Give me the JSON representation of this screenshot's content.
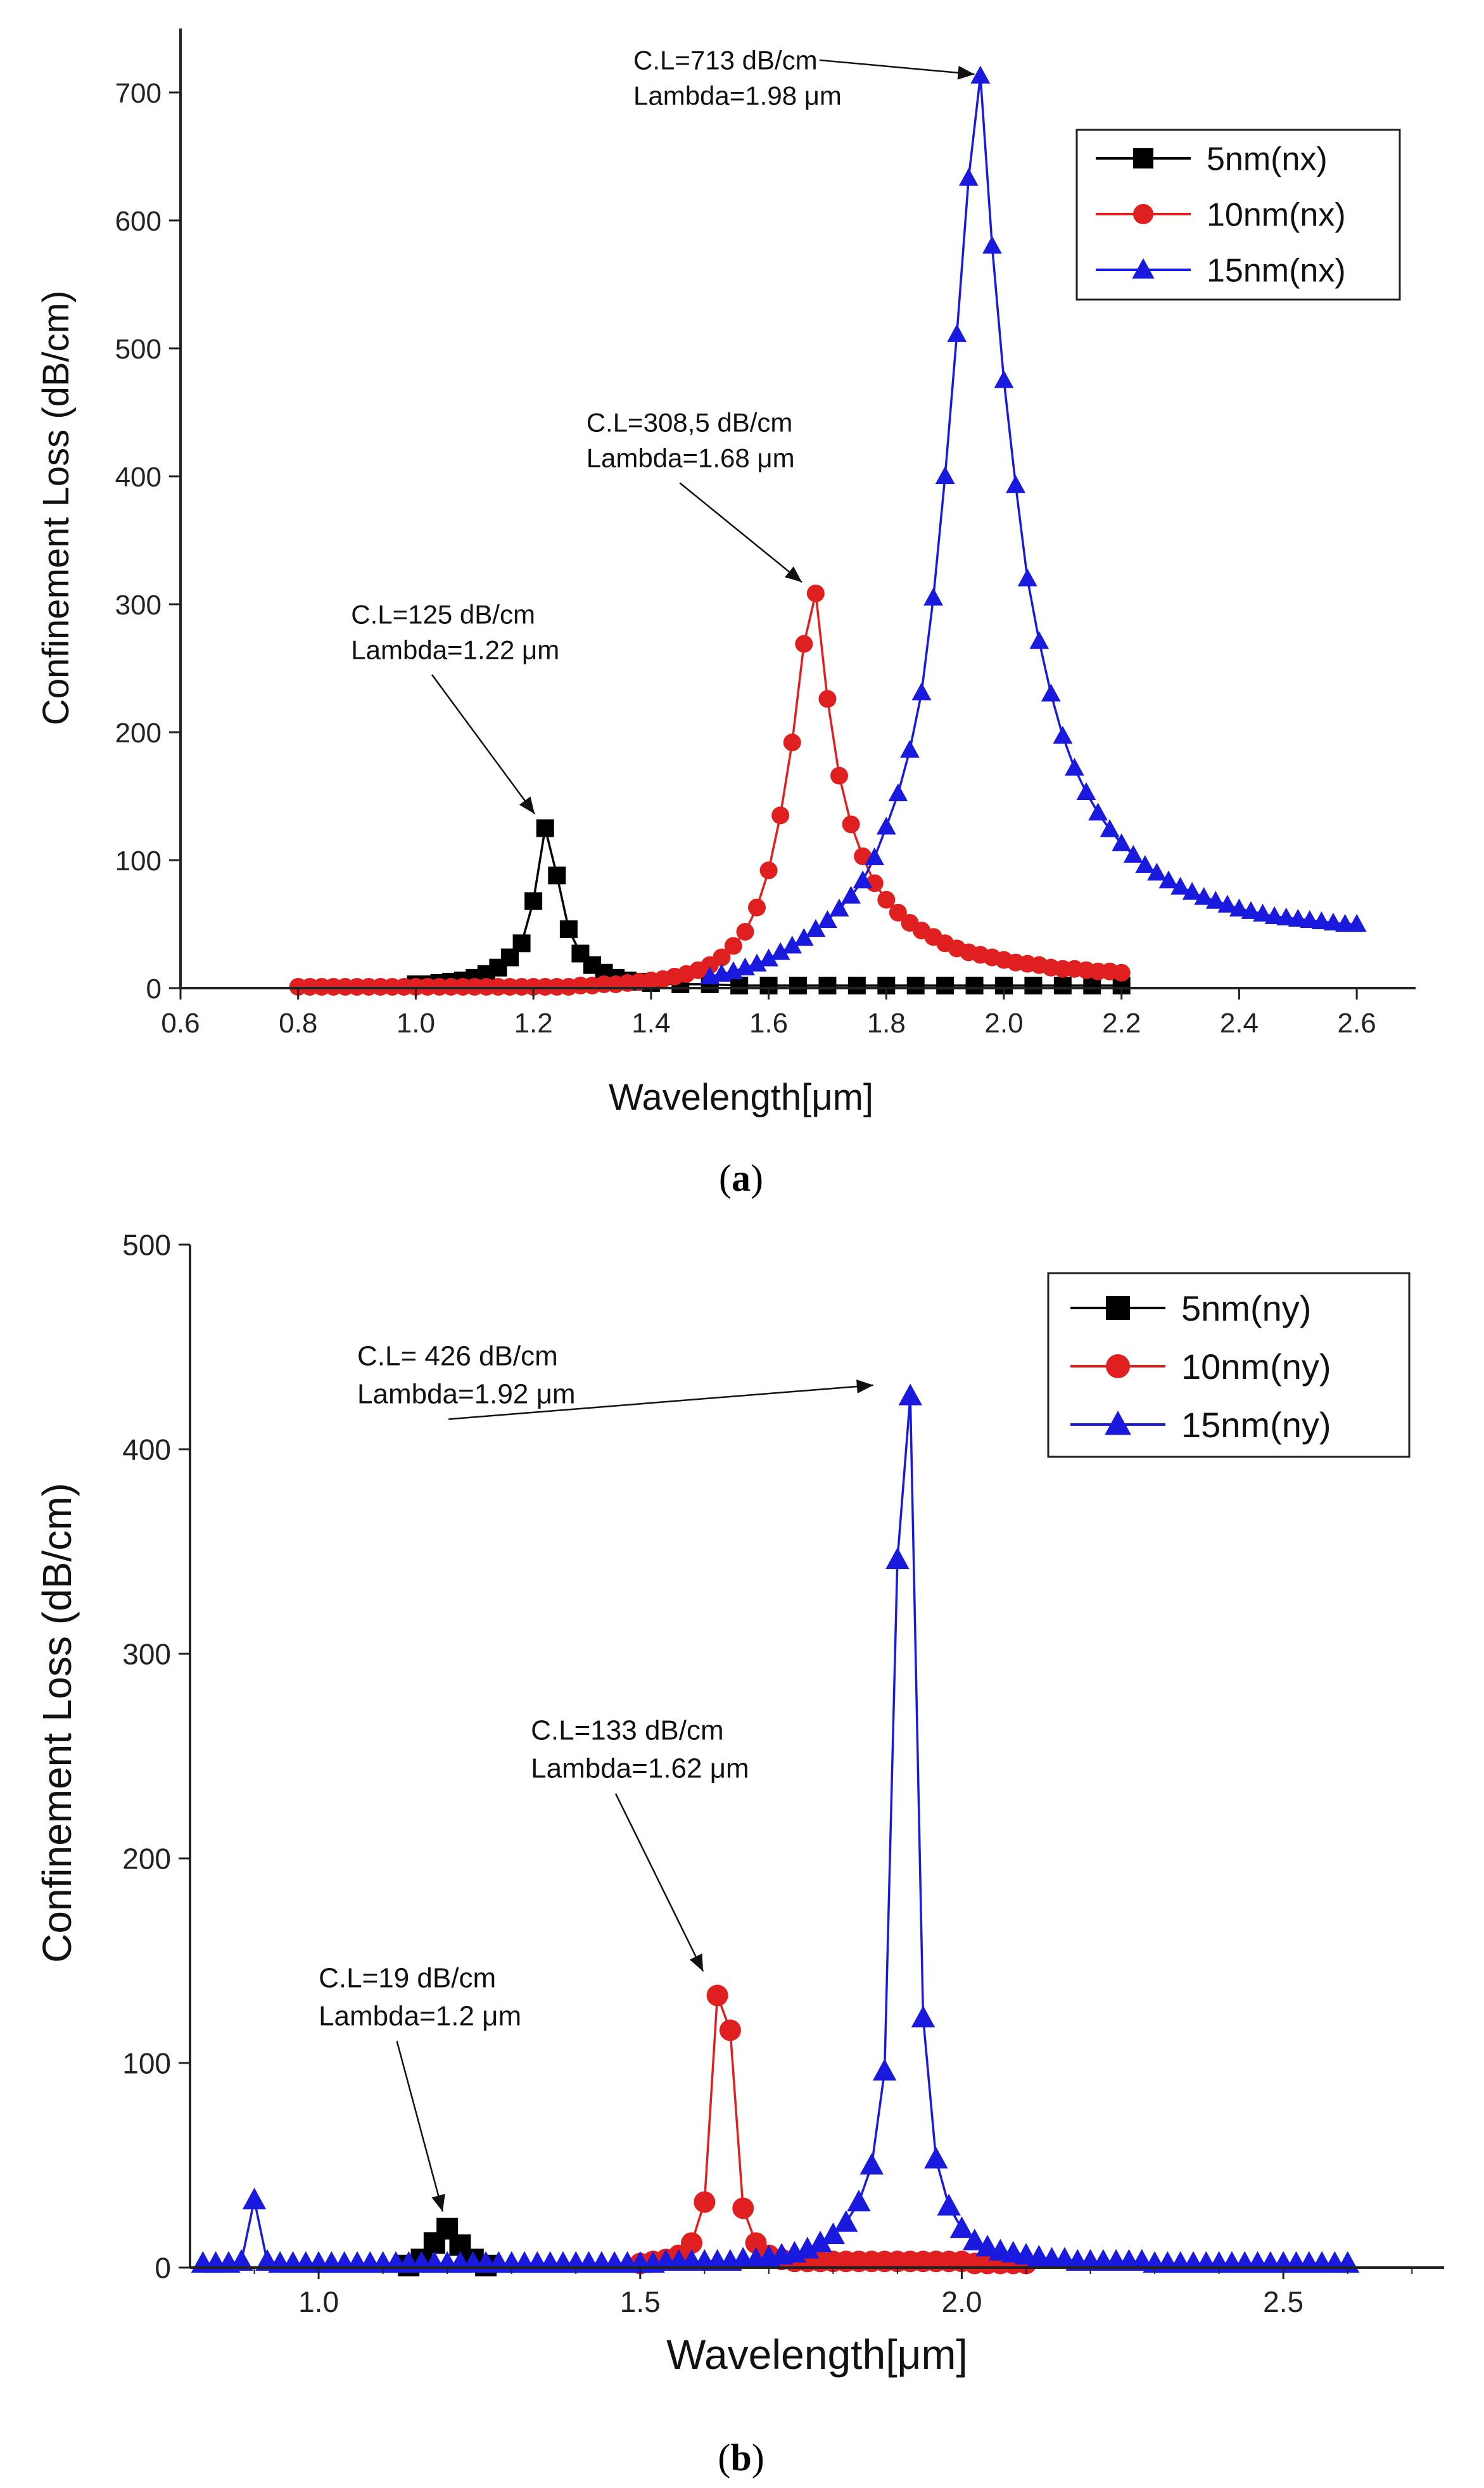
{
  "chart_data": [
    {
      "type": "line",
      "panel_label": "a",
      "title": "",
      "xlabel": "Wavelength[μm]",
      "ylabel": "Confinement Loss (dB/cm)",
      "xlim": [
        0.6,
        2.7
      ],
      "ylim": [
        0,
        750
      ],
      "xticks": [
        "0.6",
        "0.8",
        "1.0",
        "1.2",
        "1.4",
        "1.6",
        "1.8",
        "2.0",
        "2.2",
        "2.4",
        "2.6"
      ],
      "yticks": [
        "0",
        "100",
        "200",
        "300",
        "400",
        "500",
        "600",
        "700"
      ],
      "legend_position": "top-right",
      "series": [
        {
          "name": "5nm(nx)",
          "color": "#000000",
          "marker": "square",
          "x": [
            1.0,
            1.02,
            1.04,
            1.06,
            1.08,
            1.1,
            1.12,
            1.14,
            1.16,
            1.18,
            1.2,
            1.22,
            1.24,
            1.26,
            1.28,
            1.3,
            1.32,
            1.34,
            1.36,
            1.38,
            1.4,
            1.45,
            1.5,
            1.55,
            1.6,
            1.65,
            1.7,
            1.75,
            1.8,
            1.85,
            1.9,
            1.95,
            2.0,
            2.05,
            2.1,
            2.15,
            2.2
          ],
          "values": [
            3,
            3,
            4,
            5,
            6,
            8,
            11,
            16,
            24,
            35,
            68,
            125,
            88,
            46,
            27,
            18,
            12,
            8,
            6,
            5,
            4,
            3,
            3,
            2,
            2,
            2,
            2,
            2,
            2,
            2,
            2,
            2,
            2,
            2,
            2,
            2,
            2
          ]
        },
        {
          "name": "10nm(nx)",
          "color": "#e02020",
          "marker": "circle",
          "x": [
            0.8,
            0.82,
            0.84,
            0.86,
            0.88,
            0.9,
            0.92,
            0.94,
            0.96,
            0.98,
            1.0,
            1.02,
            1.04,
            1.06,
            1.08,
            1.1,
            1.12,
            1.14,
            1.16,
            1.18,
            1.2,
            1.22,
            1.24,
            1.26,
            1.28,
            1.3,
            1.32,
            1.34,
            1.36,
            1.38,
            1.4,
            1.42,
            1.44,
            1.46,
            1.48,
            1.5,
            1.52,
            1.54,
            1.56,
            1.58,
            1.6,
            1.62,
            1.64,
            1.66,
            1.68,
            1.7,
            1.72,
            1.74,
            1.76,
            1.78,
            1.8,
            1.82,
            1.84,
            1.86,
            1.88,
            1.9,
            1.92,
            1.94,
            1.96,
            1.98,
            2.0,
            2.02,
            2.04,
            2.06,
            2.08,
            2.1,
            2.12,
            2.14,
            2.16,
            2.18,
            2.2
          ],
          "values": [
            1,
            1,
            1,
            1,
            1,
            1,
            1,
            1,
            1,
            1,
            1,
            1,
            1,
            1,
            1,
            1,
            1,
            1,
            1,
            1,
            1,
            1,
            1,
            1,
            2,
            2,
            3,
            3,
            4,
            5,
            6,
            7,
            9,
            11,
            14,
            18,
            24,
            33,
            44,
            63,
            92,
            135,
            192,
            269,
            308.5,
            226,
            166,
            128,
            103,
            82,
            69,
            59,
            51,
            45,
            40,
            35,
            31,
            28,
            26,
            24,
            22,
            20,
            19,
            18,
            16,
            15,
            15,
            14,
            13,
            13,
            12
          ]
        },
        {
          "name": "15nm(nx)",
          "color": "#1a1adf",
          "marker": "triangle",
          "x": [
            1.5,
            1.52,
            1.54,
            1.56,
            1.58,
            1.6,
            1.62,
            1.64,
            1.66,
            1.68,
            1.7,
            1.72,
            1.74,
            1.76,
            1.78,
            1.8,
            1.82,
            1.84,
            1.86,
            1.88,
            1.9,
            1.92,
            1.94,
            1.96,
            1.98,
            2.0,
            2.02,
            2.04,
            2.06,
            2.08,
            2.1,
            2.12,
            2.14,
            2.16,
            2.18,
            2.2,
            2.22,
            2.24,
            2.26,
            2.28,
            2.3,
            2.32,
            2.34,
            2.36,
            2.38,
            2.4,
            2.42,
            2.44,
            2.46,
            2.48,
            2.5,
            2.52,
            2.54,
            2.56,
            2.58,
            2.6
          ],
          "values": [
            9,
            11,
            13,
            16,
            19,
            23,
            28,
            33,
            39,
            46,
            53,
            62,
            72,
            84,
            102,
            126,
            152,
            186,
            231,
            305,
            400,
            511,
            633,
            713,
            580,
            475,
            393,
            320,
            271,
            230,
            197,
            172,
            153,
            137,
            124,
            113,
            104,
            96,
            90,
            84,
            79,
            75,
            71,
            68,
            65,
            62,
            60,
            58,
            56,
            55,
            54,
            53,
            52,
            51,
            50,
            50
          ]
        }
      ],
      "annotations": [
        {
          "line1": "C.L=125 dB/cm",
          "line2": "Lambda=1.22 μm",
          "x": 1.22,
          "y": 125,
          "text_x": 0.89,
          "text_y": 285
        },
        {
          "line1": "C.L=308,5 dB/cm",
          "line2": "Lambda=1.68 μm",
          "x": 1.68,
          "y": 308.5,
          "text_x": 1.29,
          "text_y": 435
        },
        {
          "line1": "C.L=713 dB/cm",
          "line2": "Lambda=1.98 μm",
          "x": 1.98,
          "y": 713,
          "text_x": 1.37,
          "text_y": 718
        }
      ]
    },
    {
      "type": "line",
      "panel_label": "b",
      "title": "",
      "xlabel": "Wavelength[μm]",
      "ylabel": "Confinement Loss (dB/cm)",
      "xlim": [
        0.8,
        2.75
      ],
      "ylim": [
        0,
        500
      ],
      "xticks": [
        "1.0",
        "1.5",
        "2.0",
        "2.5"
      ],
      "xtick_values": [
        1.0,
        1.5,
        2.0,
        2.5
      ],
      "yticks": [
        "0",
        "100",
        "200",
        "300",
        "400",
        "500"
      ],
      "legend_position": "top-right",
      "series": [
        {
          "name": "5nm(ny)",
          "color": "#000000",
          "marker": "square",
          "x": [
            1.14,
            1.16,
            1.18,
            1.2,
            1.22,
            1.24,
            1.26
          ],
          "values": [
            1,
            4,
            12,
            19,
            11,
            4,
            1
          ]
        },
        {
          "name": "10nm(ny)",
          "color": "#e02020",
          "marker": "circle",
          "x": [
            1.5,
            1.52,
            1.54,
            1.56,
            1.58,
            1.6,
            1.62,
            1.64,
            1.66,
            1.68,
            1.7,
            1.72,
            1.74,
            1.76,
            1.78,
            1.8,
            1.82,
            1.84,
            1.86,
            1.88,
            1.9,
            1.92,
            1.94,
            1.96,
            1.98,
            2.0,
            2.02,
            2.04,
            2.06,
            2.08,
            2.1
          ],
          "values": [
            2,
            3,
            4,
            6,
            12,
            32,
            133,
            116,
            29,
            12,
            6,
            4,
            3,
            3,
            3,
            3,
            3,
            3,
            3,
            3,
            3,
            3,
            3,
            3,
            3,
            3,
            2,
            2,
            2,
            2,
            2
          ]
        },
        {
          "name": "15nm(ny)",
          "color": "#1a1adf",
          "marker": "triangle",
          "x": [
            0.82,
            0.84,
            0.86,
            0.88,
            0.9,
            0.92,
            0.94,
            0.96,
            0.98,
            1.0,
            1.02,
            1.04,
            1.06,
            1.08,
            1.1,
            1.12,
            1.14,
            1.16,
            1.18,
            1.2,
            1.22,
            1.24,
            1.26,
            1.28,
            1.3,
            1.32,
            1.34,
            1.36,
            1.38,
            1.4,
            1.42,
            1.44,
            1.46,
            1.48,
            1.5,
            1.52,
            1.54,
            1.56,
            1.58,
            1.6,
            1.62,
            1.64,
            1.66,
            1.68,
            1.7,
            1.72,
            1.74,
            1.76,
            1.78,
            1.8,
            1.82,
            1.84,
            1.86,
            1.88,
            1.9,
            1.92,
            1.94,
            1.96,
            1.98,
            2.0,
            2.02,
            2.04,
            2.06,
            2.08,
            2.1,
            2.12,
            2.14,
            2.16,
            2.18,
            2.2,
            2.22,
            2.24,
            2.26,
            2.28,
            2.3,
            2.32,
            2.34,
            2.36,
            2.38,
            2.4,
            2.42,
            2.44,
            2.46,
            2.48,
            2.5,
            2.52,
            2.54,
            2.56,
            2.58,
            2.6
          ],
          "values": [
            2,
            2,
            2,
            3,
            33,
            3,
            2,
            2,
            2,
            2,
            2,
            2,
            2,
            2,
            2,
            2,
            2,
            2,
            2,
            2,
            2,
            2,
            2,
            2,
            2,
            2,
            2,
            2,
            2,
            2,
            2,
            2,
            2,
            2,
            2,
            2,
            3,
            3,
            3,
            3,
            3,
            3,
            4,
            4,
            5,
            6,
            7,
            9,
            12,
            16,
            22,
            32,
            50,
            96,
            346,
            426,
            122,
            53,
            30,
            19,
            13,
            10,
            8,
            7,
            6,
            5,
            4,
            4,
            3,
            3,
            3,
            3,
            3,
            3,
            2,
            2,
            2,
            2,
            2,
            2,
            2,
            2,
            2,
            2,
            2,
            2,
            2,
            2,
            2,
            2
          ]
        }
      ],
      "annotations": [
        {
          "line1": "C.L=19 dB/cm",
          "line2": "Lambda=1.2 μm",
          "x": 1.2,
          "y": 19,
          "text_x": 1.0,
          "text_y": 137
        },
        {
          "line1": "C.L=133 dB/cm",
          "line2": "Lambda=1.62 μm",
          "x": 1.61,
          "y": 137,
          "text_x": 1.33,
          "text_y": 258
        },
        {
          "line1": "C.L= 426 dB/cm",
          "line2": "Lambda=1.92 μm",
          "x": 1.89,
          "y": 432,
          "text_x": 1.06,
          "text_y": 441
        }
      ]
    }
  ]
}
